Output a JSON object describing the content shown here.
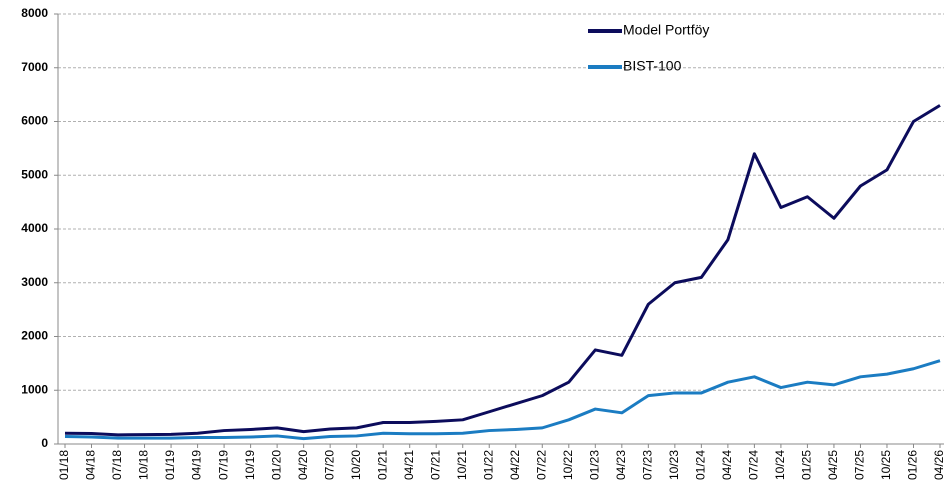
{
  "chart_data": {
    "type": "line",
    "categories": [
      "01/18",
      "04/18",
      "07/18",
      "10/18",
      "01/19",
      "04/19",
      "07/19",
      "10/19",
      "01/20",
      "04/20",
      "07/20",
      "10/20",
      "01/21",
      "04/21",
      "07/21",
      "10/21",
      "01/22",
      "04/22",
      "07/22",
      "10/22",
      "01/23",
      "04/23",
      "07/23",
      "10/23",
      "01/24",
      "04/24",
      "07/24",
      "10/24",
      "01/25",
      "04/25",
      "07/25",
      "10/25",
      "01/26",
      "04/26"
    ],
    "series": [
      {
        "name": "Model Portföy",
        "color": "#0c0c5c",
        "values": [
          200,
          195,
          170,
          175,
          180,
          200,
          250,
          270,
          300,
          230,
          280,
          300,
          400,
          400,
          420,
          450,
          600,
          750,
          900,
          1150,
          1750,
          1650,
          2600,
          3000,
          3100,
          3800,
          5400,
          4400,
          4600,
          4200,
          4800,
          5100,
          6000,
          6300
        ]
      },
      {
        "name": "BIST-100",
        "color": "#1b7cc2",
        "values": [
          140,
          130,
          110,
          110,
          110,
          120,
          120,
          130,
          150,
          100,
          140,
          150,
          200,
          190,
          190,
          200,
          250,
          270,
          300,
          450,
          650,
          580,
          900,
          950,
          950,
          1150,
          1250,
          1050,
          1150,
          1100,
          1250,
          1300,
          1400,
          1550
        ]
      }
    ],
    "ylim": [
      0,
      8000
    ],
    "yticks": [
      0,
      1000,
      2000,
      3000,
      4000,
      5000,
      6000,
      7000,
      8000
    ],
    "grid": true,
    "legend": "upper right"
  }
}
